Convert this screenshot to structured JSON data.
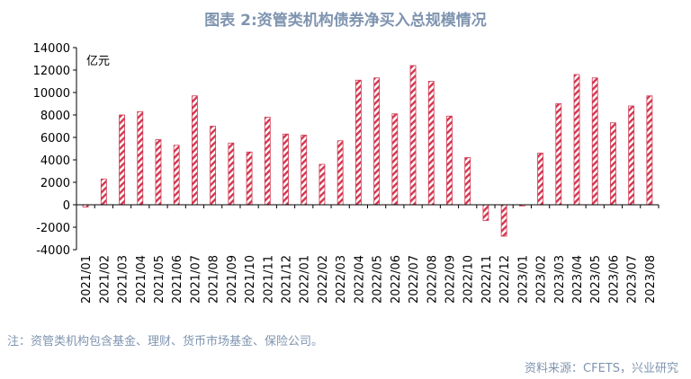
{
  "title": "图表 2:资管类机构债券净买入总规模情况",
  "note": "注：资管类机构包含基金、理财、货币市场基金、保险公司。",
  "source": "资料来源：CFETS，兴业研究",
  "colors": {
    "bar": "#d2364f",
    "text": "#7f94b0",
    "axis": "#000000"
  },
  "chart_data": {
    "type": "bar",
    "unit_label": "亿元",
    "ylim": [
      -4000,
      14000
    ],
    "yticks": [
      -4000,
      -2000,
      0,
      2000,
      4000,
      6000,
      8000,
      10000,
      12000,
      14000
    ],
    "grid": false,
    "categories": [
      "2021/01",
      "2021/02",
      "2021/03",
      "2021/04",
      "2021/05",
      "2021/06",
      "2021/07",
      "2021/08",
      "2021/09",
      "2021/10",
      "2021/11",
      "2021/12",
      "2022/01",
      "2022/02",
      "2022/03",
      "2022/04",
      "2022/05",
      "2022/06",
      "2022/07",
      "2022/08",
      "2022/09",
      "2022/10",
      "2022/11",
      "2022/12",
      "2023/01",
      "2023/02",
      "2023/03",
      "2023/04",
      "2023/05",
      "2023/06",
      "2023/07",
      "2023/08"
    ],
    "values": [
      -200,
      2300,
      8000,
      8300,
      5800,
      5300,
      9700,
      7000,
      5500,
      4700,
      7800,
      6300,
      6200,
      3600,
      5700,
      11100,
      11300,
      8100,
      12400,
      11000,
      7900,
      4200,
      -1400,
      -2800,
      -100,
      4600,
      9000,
      11600,
      11300,
      7300,
      8800,
      9700
    ]
  }
}
